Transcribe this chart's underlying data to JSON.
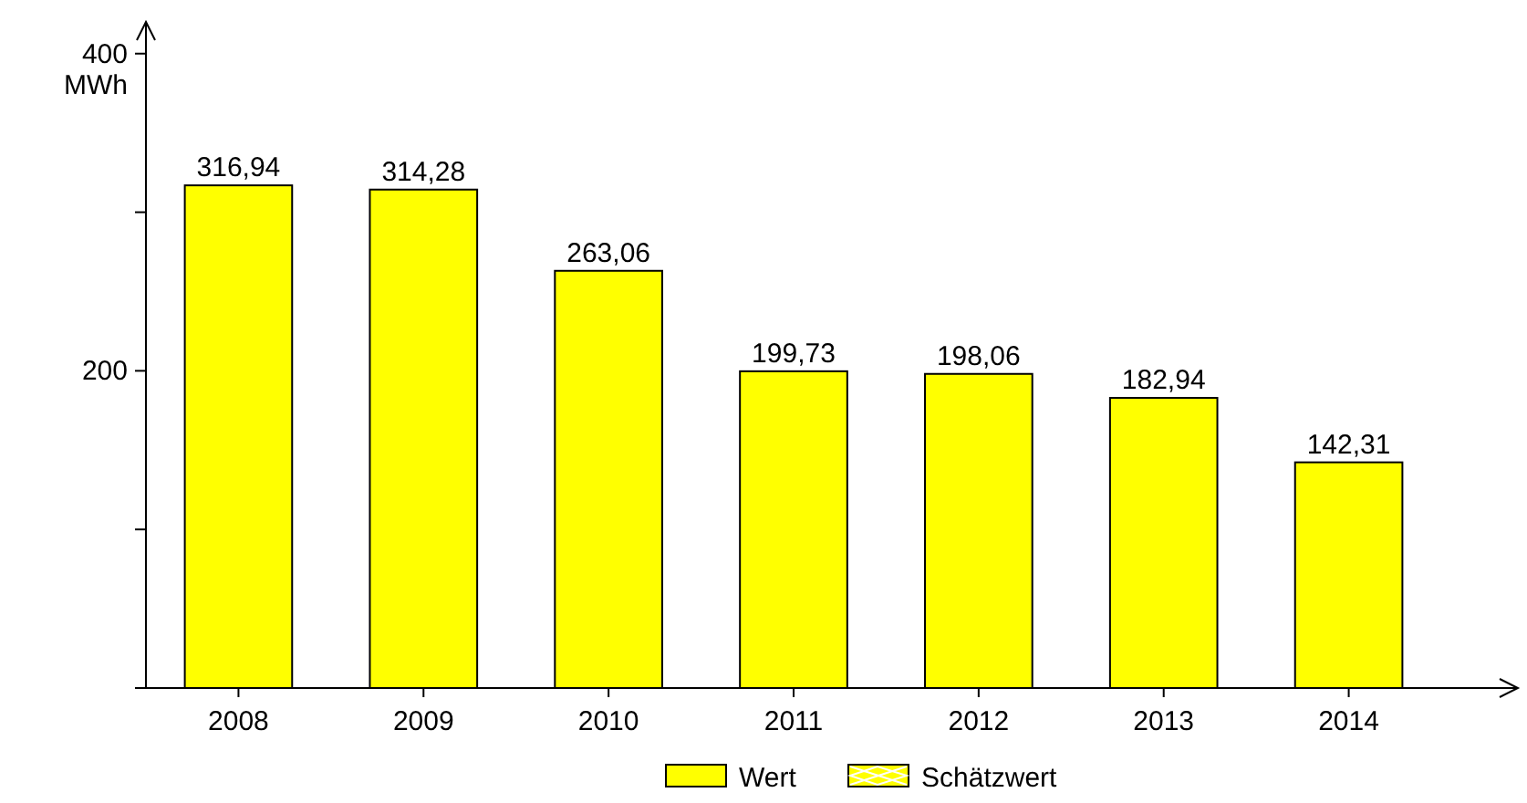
{
  "chart_data": {
    "type": "bar",
    "ylabel": "MWh",
    "categories": [
      "2008",
      "2009",
      "2010",
      "2011",
      "2012",
      "2013",
      "2014"
    ],
    "series": [
      {
        "name": "Wert",
        "color": "#ffff00",
        "values": [
          316.94,
          314.28,
          263.06,
          199.73,
          198.06,
          182.94,
          142.31
        ],
        "value_labels": [
          "316,94",
          "314,28",
          "263,06",
          "199,73",
          "198,06",
          "182,94",
          "142,31"
        ]
      },
      {
        "name": "Schätzwert",
        "color": "#ffff00",
        "values": [
          null,
          null,
          null,
          null,
          null,
          null,
          null
        ]
      }
    ],
    "ylim": [
      0,
      420
    ],
    "yticks": [
      {
        "value": 0,
        "label": null
      },
      {
        "value": 100,
        "label": null
      },
      200,
      {
        "value": 300,
        "label": null
      },
      400
    ],
    "grid": false,
    "legend": "bottom"
  }
}
